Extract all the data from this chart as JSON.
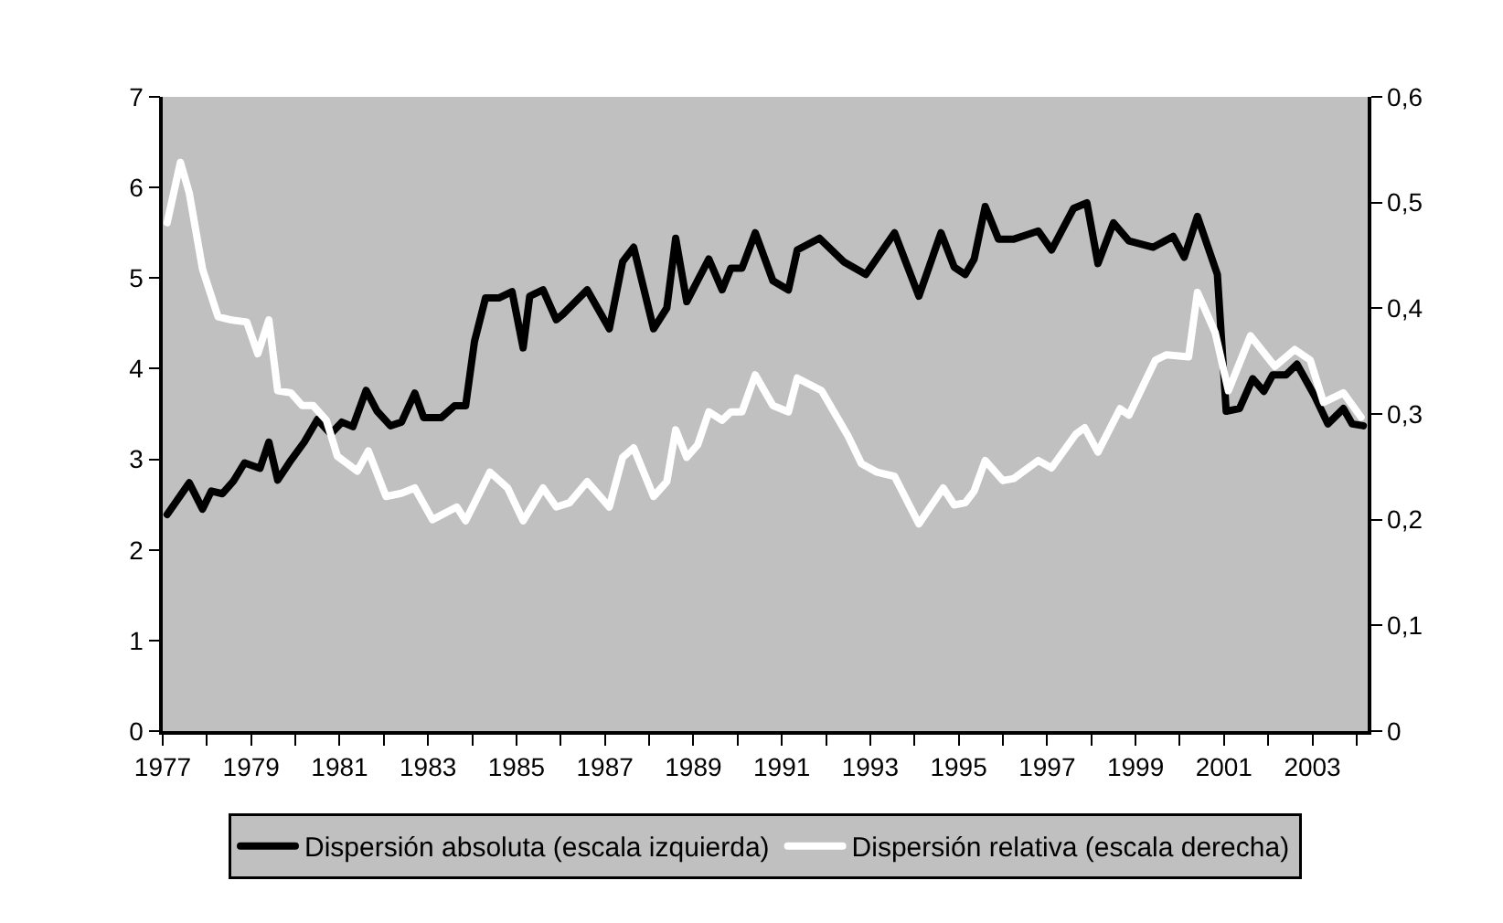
{
  "chart_data": {
    "type": "line",
    "xlim": [
      1977,
      2004.25
    ],
    "xticks": [
      {
        "value": 1977,
        "label": "1977"
      },
      {
        "value": 1978,
        "label": null
      },
      {
        "value": 1979,
        "label": "1979"
      },
      {
        "value": 1980,
        "label": null
      },
      {
        "value": 1981,
        "label": "1981"
      },
      {
        "value": 1982,
        "label": null
      },
      {
        "value": 1983,
        "label": "1983"
      },
      {
        "value": 1984,
        "label": null
      },
      {
        "value": 1985,
        "label": "1985"
      },
      {
        "value": 1986,
        "label": null
      },
      {
        "value": 1987,
        "label": "1987"
      },
      {
        "value": 1988,
        "label": null
      },
      {
        "value": 1989,
        "label": "1989"
      },
      {
        "value": 1990,
        "label": null
      },
      {
        "value": 1991,
        "label": "1991"
      },
      {
        "value": 1992,
        "label": null
      },
      {
        "value": 1993,
        "label": "1993"
      },
      {
        "value": 1994,
        "label": null
      },
      {
        "value": 1995,
        "label": "1995"
      },
      {
        "value": 1996,
        "label": null
      },
      {
        "value": 1997,
        "label": "1997"
      },
      {
        "value": 1998,
        "label": null
      },
      {
        "value": 1999,
        "label": "1999"
      },
      {
        "value": 2000,
        "label": null
      },
      {
        "value": 2001,
        "label": "2001"
      },
      {
        "value": 2002,
        "label": null
      },
      {
        "value": 2003,
        "label": "2003"
      },
      {
        "value": 2004,
        "label": null
      }
    ],
    "ylim": [
      0,
      7
    ],
    "yticks": [
      0,
      1,
      2,
      3,
      4,
      5,
      6,
      7
    ],
    "y2lim": [
      0,
      0.6
    ],
    "y2ticks": [
      {
        "value": 0,
        "label": "0"
      },
      {
        "value": 0.1,
        "label": "0,1"
      },
      {
        "value": 0.2,
        "label": "0,2"
      },
      {
        "value": 0.3,
        "label": "0,3"
      },
      {
        "value": 0.4,
        "label": "0,4"
      },
      {
        "value": 0.5,
        "label": "0,5"
      },
      {
        "value": 0.6,
        "label": "0,6"
      }
    ],
    "grid": false,
    "legend": "bottom",
    "marker": "none",
    "line_style": "solid",
    "series": [
      {
        "name": "Dispersión absoluta (escala izquierda)",
        "color": "#000000",
        "x": [
          1977.1,
          1977.6,
          1977.9,
          1978.1,
          1978.35,
          1978.6,
          1978.85,
          1979.2,
          1979.4,
          1979.6,
          1979.9,
          1980.2,
          1980.5,
          1980.8,
          1981.05,
          1981.3,
          1981.6,
          1981.85,
          1982.15,
          1982.4,
          1982.7,
          1982.9,
          1983.3,
          1983.6,
          1983.85,
          1984.05,
          1984.3,
          1984.6,
          1984.9,
          1985.15,
          1985.3,
          1985.6,
          1985.9,
          1986.05,
          1986.6,
          1987.1,
          1987.4,
          1987.65,
          1988.1,
          1988.4,
          1988.6,
          1988.85,
          1989.35,
          1989.65,
          1989.85,
          1990.1,
          1990.4,
          1990.8,
          1991.15,
          1991.35,
          1991.85,
          1992.4,
          1992.9,
          1993.55,
          1994.1,
          1994.6,
          1994.9,
          1995.15,
          1995.35,
          1995.6,
          1995.9,
          1996.25,
          1996.8,
          1997.1,
          1997.6,
          1997.9,
          1998.15,
          1998.5,
          1998.85,
          1999.4,
          1999.85,
          2000.1,
          2000.4,
          2000.85,
          2001.05,
          2001.35,
          2001.65,
          2001.9,
          2002.1,
          2002.4,
          2002.65,
          2003.05,
          2003.35,
          2003.7,
          2003.9,
          2004.15
        ],
        "values": [
          2.39,
          2.74,
          2.45,
          2.65,
          2.62,
          2.76,
          2.96,
          2.9,
          3.19,
          2.77,
          2.99,
          3.19,
          3.44,
          3.28,
          3.41,
          3.36,
          3.76,
          3.53,
          3.37,
          3.41,
          3.73,
          3.46,
          3.46,
          3.59,
          3.59,
          4.3,
          4.78,
          4.78,
          4.85,
          4.23,
          4.8,
          4.87,
          4.54,
          4.6,
          4.87,
          4.44,
          5.18,
          5.34,
          4.44,
          4.67,
          5.44,
          4.74,
          5.21,
          4.87,
          5.11,
          5.11,
          5.5,
          4.97,
          4.87,
          5.31,
          5.44,
          5.18,
          5.04,
          5.5,
          4.8,
          5.5,
          5.12,
          5.04,
          5.21,
          5.79,
          5.43,
          5.43,
          5.52,
          5.31,
          5.77,
          5.83,
          5.16,
          5.61,
          5.41,
          5.34,
          5.46,
          5.23,
          5.68,
          5.04,
          3.53,
          3.56,
          3.89,
          3.75,
          3.93,
          3.93,
          4.05,
          3.7,
          3.39,
          3.56,
          3.39,
          3.37
        ]
      },
      {
        "name": "Dispersión relativa (escala derecha)",
        "color": "#ffffff",
        "axis": "y2",
        "x": [
          1977.1,
          1977.4,
          1977.6,
          1977.9,
          1978.25,
          1978.55,
          1978.9,
          1979.15,
          1979.4,
          1979.6,
          1979.9,
          1980.15,
          1980.4,
          1980.7,
          1980.95,
          1981.4,
          1981.65,
          1982.05,
          1982.4,
          1982.7,
          1983.1,
          1983.65,
          1983.85,
          1984.4,
          1984.8,
          1985.15,
          1985.6,
          1985.9,
          1986.2,
          1986.6,
          1987.1,
          1987.4,
          1987.65,
          1988.1,
          1988.4,
          1988.6,
          1988.85,
          1989.1,
          1989.35,
          1989.65,
          1989.85,
          1990.1,
          1990.4,
          1990.8,
          1991.15,
          1991.35,
          1991.9,
          1992.5,
          1992.8,
          1993.15,
          1993.55,
          1994.1,
          1994.65,
          1994.9,
          1995.15,
          1995.35,
          1995.6,
          1996.0,
          1996.25,
          1996.8,
          1997.1,
          1997.65,
          1997.85,
          1998.15,
          1998.65,
          1998.85,
          1999.45,
          1999.7,
          2000.2,
          2000.4,
          2000.8,
          2001.1,
          2001.6,
          2002.15,
          2002.6,
          2002.95,
          2003.25,
          2003.7,
          2004.1
        ],
        "values": [
          0.481,
          0.538,
          0.509,
          0.437,
          0.392,
          0.389,
          0.387,
          0.357,
          0.389,
          0.322,
          0.32,
          0.308,
          0.308,
          0.294,
          0.26,
          0.246,
          0.265,
          0.222,
          0.225,
          0.23,
          0.2,
          0.212,
          0.199,
          0.245,
          0.23,
          0.199,
          0.23,
          0.212,
          0.216,
          0.236,
          0.212,
          0.259,
          0.268,
          0.222,
          0.236,
          0.285,
          0.259,
          0.271,
          0.302,
          0.294,
          0.302,
          0.302,
          0.337,
          0.308,
          0.302,
          0.334,
          0.322,
          0.279,
          0.253,
          0.245,
          0.241,
          0.196,
          0.23,
          0.214,
          0.216,
          0.227,
          0.256,
          0.237,
          0.239,
          0.256,
          0.249,
          0.281,
          0.287,
          0.264,
          0.305,
          0.299,
          0.351,
          0.356,
          0.354,
          0.415,
          0.377,
          0.322,
          0.374,
          0.345,
          0.361,
          0.351,
          0.311,
          0.32,
          0.297
        ]
      }
    ]
  }
}
